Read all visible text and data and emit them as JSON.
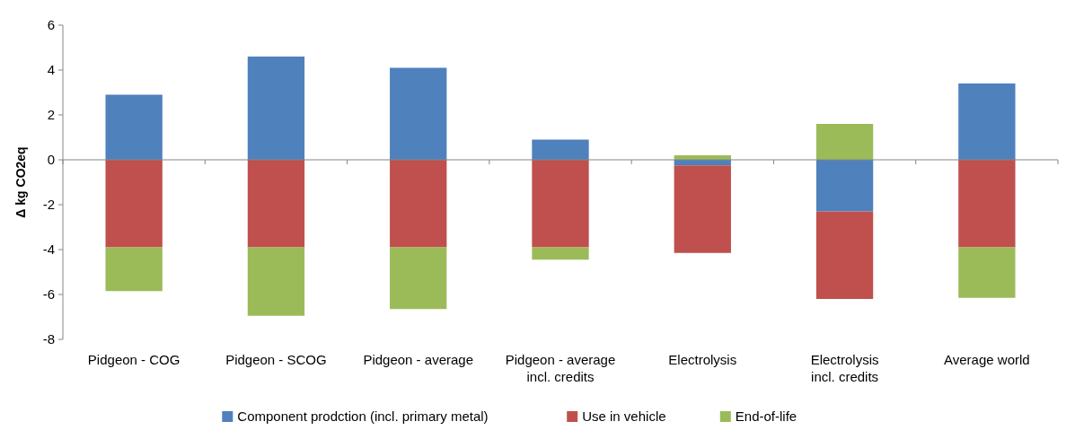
{
  "chart_data": {
    "type": "bar",
    "stacked": true,
    "ylabel": "Δ kg CO2eq",
    "categories": [
      "Pidgeon - COG",
      "Pidgeon - SCOG",
      "Pidgeon - average",
      "Pidgeon - average incl. credits",
      "Electrolysis",
      "Electrolysis incl. credits",
      "Average world"
    ],
    "series": [
      {
        "name": "Component prodction (incl. primary metal)",
        "color": "#4f81bd",
        "values": [
          2.9,
          4.6,
          4.1,
          0.9,
          -0.25,
          -2.3,
          3.4
        ]
      },
      {
        "name": "Use in vehicle",
        "color": "#c0504d",
        "values": [
          -3.9,
          -3.9,
          -3.9,
          -3.9,
          -3.9,
          -3.9,
          -3.9
        ]
      },
      {
        "name": "End-of-life",
        "color": "#9bbb59",
        "values": [
          -1.95,
          -3.05,
          -2.75,
          -0.55,
          0.2,
          1.6,
          -2.25
        ]
      }
    ],
    "ylim": [
      -8,
      6
    ],
    "yticks": [
      -8,
      -6,
      -4,
      -2,
      0,
      2,
      4,
      6
    ],
    "legend": "bottom"
  }
}
